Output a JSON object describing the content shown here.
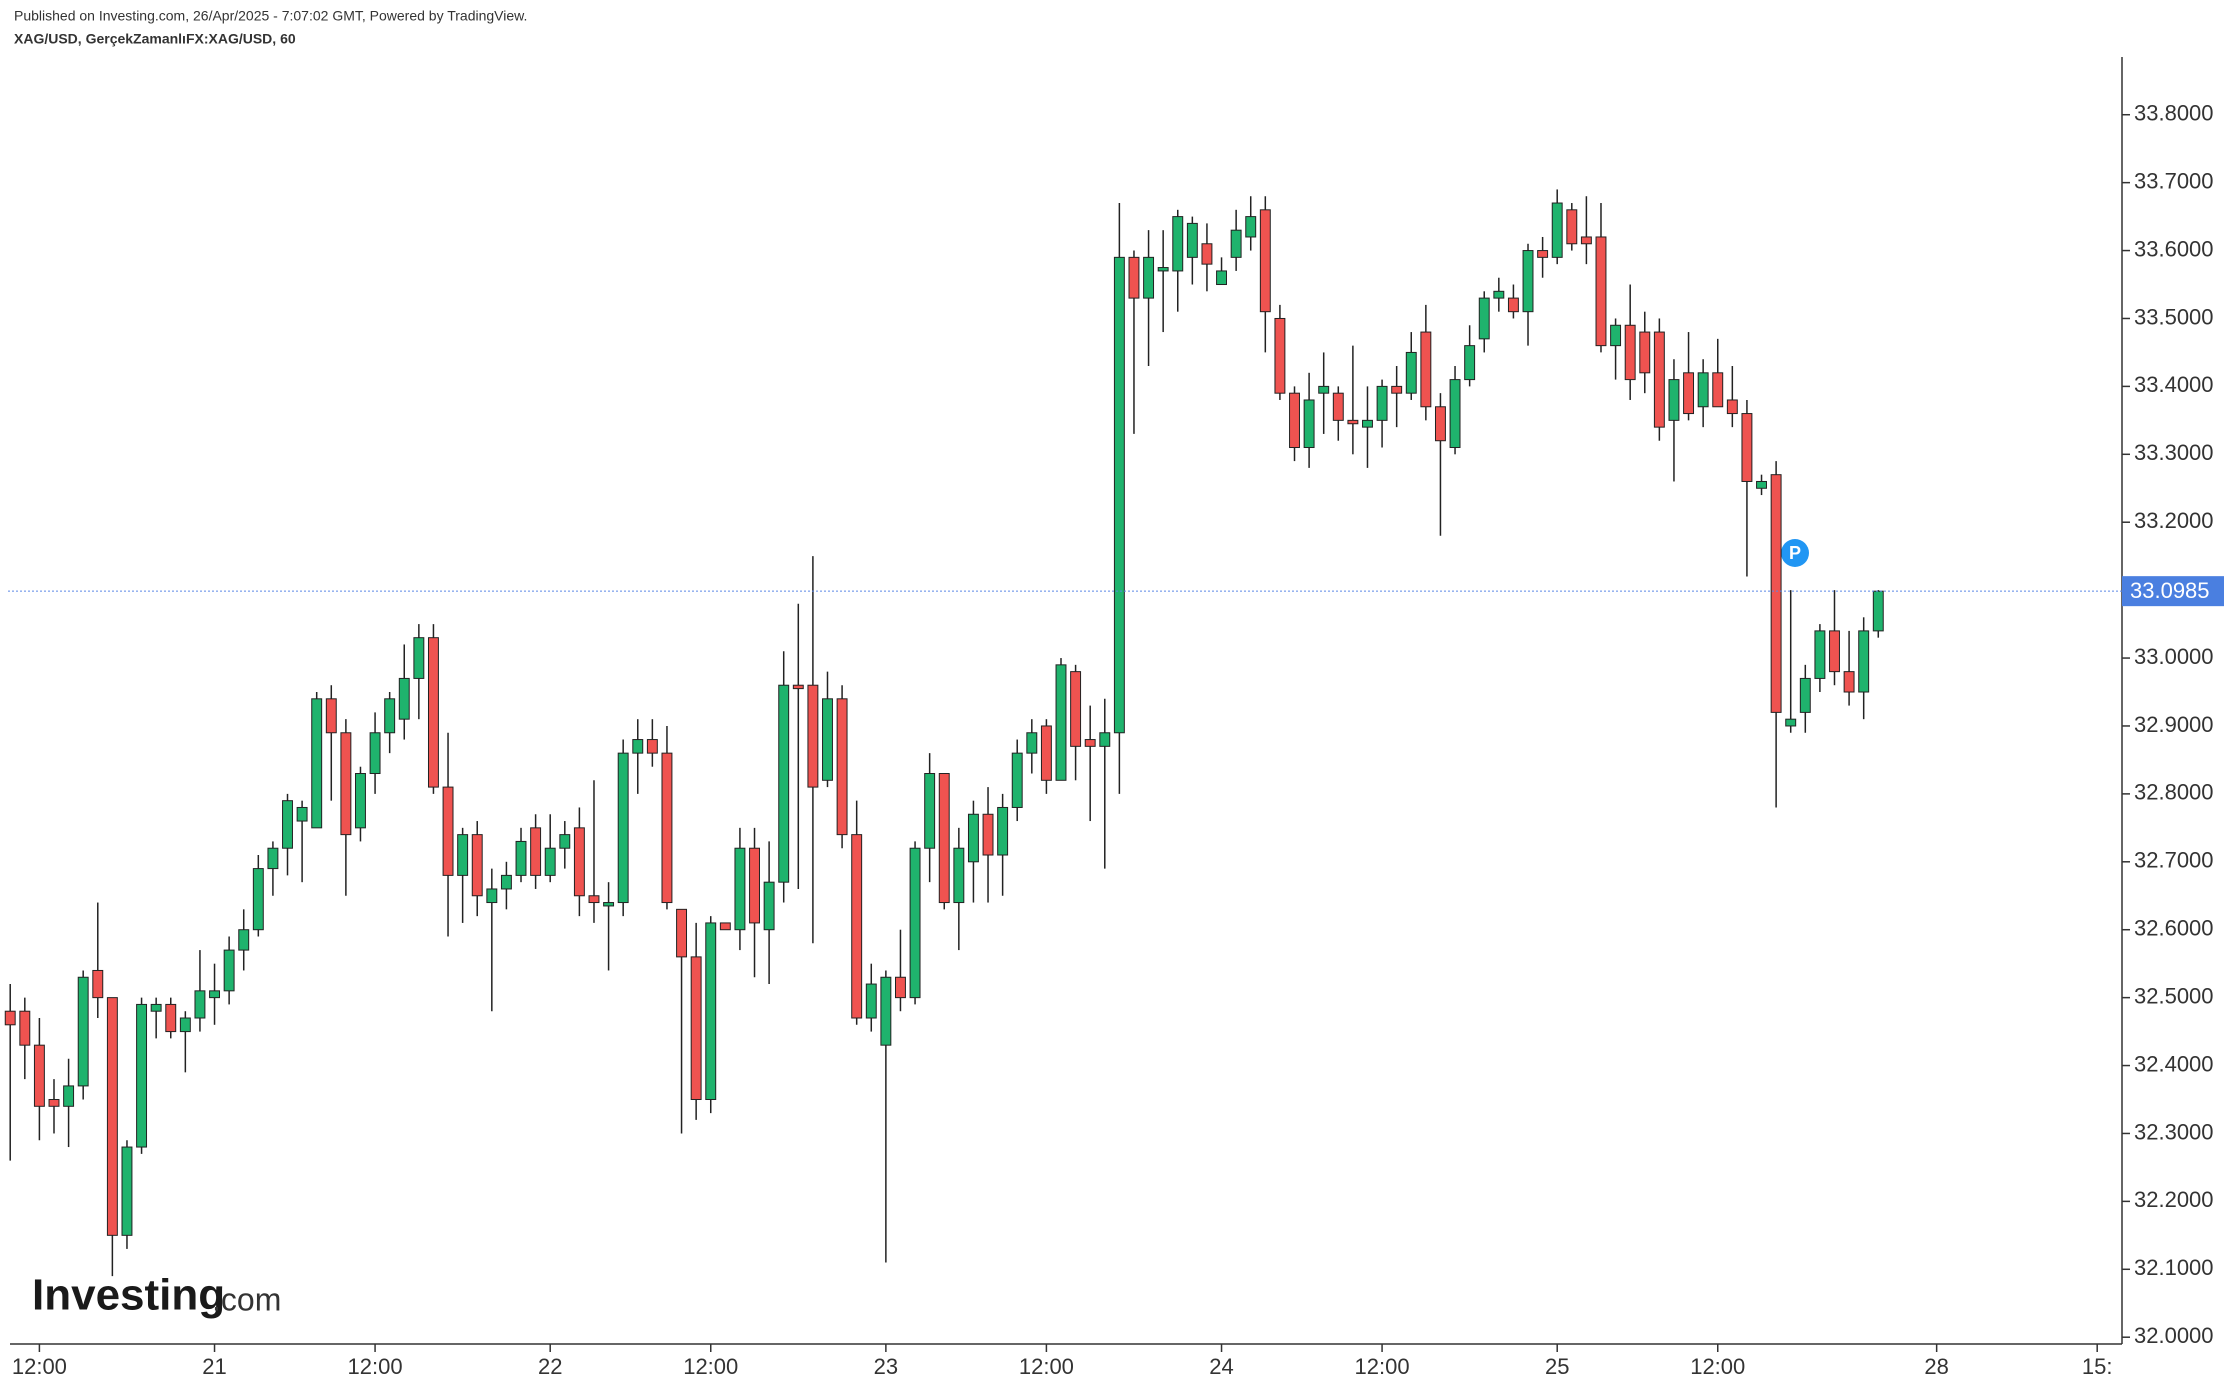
{
  "header": {
    "published": "Published on Investing.com, 26/Apr/2025 - 7:07:02 GMT, Powered by TradingView.",
    "symbol": "XAG/USD, GerçekZamanlıFX:XAG/USD, 60"
  },
  "logo": {
    "brand": "Investing",
    "suffix": ".com"
  },
  "marker": "P",
  "chart_data": {
    "type": "candlestick",
    "up_color": "#1fb36d",
    "down_color": "#ef5350",
    "outline_color": "#222222",
    "open": [
      32.48,
      32.48,
      32.43,
      32.35,
      32.34,
      32.37,
      32.54,
      32.5,
      32.15,
      32.28,
      32.48,
      32.49,
      32.45,
      32.47,
      32.5,
      32.51,
      32.57,
      32.6,
      32.69,
      32.72,
      32.76,
      32.75,
      32.94,
      32.89,
      32.75,
      32.83,
      32.89,
      32.91,
      32.97,
      33.03,
      32.81,
      32.68,
      32.74,
      32.64,
      32.66,
      32.68,
      32.75,
      32.68,
      32.72,
      32.75,
      32.65,
      32.635,
      32.64,
      32.86,
      32.88,
      32.86,
      32.63,
      32.56,
      32.35,
      32.61,
      32.6,
      32.72,
      32.6,
      32.67,
      32.96,
      32.96,
      32.82,
      32.94,
      32.74,
      32.47,
      32.43,
      32.53,
      32.5,
      32.72,
      32.83,
      32.64,
      32.7,
      32.77,
      32.71,
      32.78,
      32.86,
      32.9,
      32.82,
      32.98,
      32.88,
      32.87,
      32.89,
      33.59,
      33.53,
      33.57,
      33.57,
      33.59,
      33.61,
      33.55,
      33.59,
      33.62,
      33.66,
      33.5,
      33.39,
      33.31,
      33.39,
      33.39,
      33.35,
      33.34,
      33.35,
      33.4,
      33.39,
      33.48,
      33.37,
      33.31,
      33.41,
      33.47,
      33.53,
      33.53,
      33.51,
      33.6,
      33.59,
      33.66,
      33.62,
      33.62,
      33.46,
      33.49,
      33.48,
      33.48,
      33.35,
      33.42,
      33.37,
      33.42,
      33.38,
      33.36,
      33.25,
      33.27,
      32.9,
      32.92,
      32.97,
      33.04,
      32.98,
      32.95,
      33.04
    ],
    "high": [
      32.52,
      32.5,
      32.47,
      32.38,
      32.41,
      32.54,
      32.64,
      32.5,
      32.29,
      32.5,
      32.5,
      32.5,
      32.48,
      32.57,
      32.55,
      32.59,
      32.63,
      32.71,
      32.73,
      32.8,
      32.79,
      32.95,
      32.96,
      32.91,
      32.84,
      32.92,
      32.95,
      33.02,
      33.05,
      33.05,
      32.89,
      32.75,
      32.76,
      32.69,
      32.7,
      32.75,
      32.77,
      32.77,
      32.76,
      32.78,
      32.82,
      32.67,
      32.88,
      32.91,
      32.91,
      32.9,
      32.63,
      32.61,
      32.62,
      32.61,
      32.75,
      32.75,
      32.73,
      33.01,
      33.08,
      33.15,
      32.98,
      32.96,
      32.79,
      32.55,
      32.54,
      32.6,
      32.73,
      32.86,
      32.83,
      32.75,
      32.79,
      32.81,
      32.8,
      32.88,
      32.91,
      32.91,
      33.0,
      32.99,
      32.93,
      32.94,
      33.67,
      33.6,
      33.63,
      33.63,
      33.66,
      33.65,
      33.64,
      33.59,
      33.66,
      33.68,
      33.68,
      33.52,
      33.4,
      33.42,
      33.45,
      33.4,
      33.46,
      33.4,
      33.41,
      33.43,
      33.48,
      33.52,
      33.39,
      33.43,
      33.49,
      33.54,
      33.56,
      33.55,
      33.61,
      33.62,
      33.69,
      33.67,
      33.68,
      33.67,
      33.5,
      33.55,
      33.51,
      33.5,
      33.44,
      33.48,
      33.44,
      33.47,
      33.43,
      33.38,
      33.27,
      33.29,
      33.1,
      32.99,
      33.05,
      33.1,
      33.04,
      33.06,
      33.1
    ],
    "low": [
      32.26,
      32.38,
      32.29,
      32.3,
      32.28,
      32.35,
      32.47,
      32.09,
      32.13,
      32.27,
      32.44,
      32.44,
      32.39,
      32.45,
      32.46,
      32.49,
      32.54,
      32.59,
      32.65,
      32.68,
      32.67,
      32.75,
      32.79,
      32.65,
      32.73,
      32.8,
      32.86,
      32.88,
      32.91,
      32.8,
      32.59,
      32.61,
      32.62,
      32.48,
      32.63,
      32.67,
      32.66,
      32.67,
      32.69,
      32.62,
      32.61,
      32.54,
      32.62,
      32.8,
      32.84,
      32.63,
      32.3,
      32.32,
      32.33,
      32.6,
      32.57,
      32.53,
      32.52,
      32.64,
      32.66,
      32.58,
      32.81,
      32.72,
      32.46,
      32.45,
      32.11,
      32.48,
      32.49,
      32.67,
      32.63,
      32.57,
      32.64,
      32.64,
      32.65,
      32.76,
      32.83,
      32.8,
      32.82,
      32.82,
      32.76,
      32.69,
      32.8,
      33.33,
      33.43,
      33.48,
      33.51,
      33.55,
      33.54,
      33.55,
      33.57,
      33.6,
      33.45,
      33.38,
      33.29,
      33.28,
      33.33,
      33.32,
      33.3,
      33.28,
      33.31,
      33.34,
      33.38,
      33.35,
      33.18,
      33.3,
      33.4,
      33.45,
      33.51,
      33.5,
      33.46,
      33.56,
      33.58,
      33.6,
      33.58,
      33.45,
      33.41,
      33.38,
      33.39,
      33.32,
      33.26,
      33.35,
      33.34,
      33.37,
      33.34,
      33.12,
      33.24,
      32.78,
      32.89,
      32.89,
      32.95,
      32.96,
      32.93,
      32.91,
      33.03
    ],
    "close": [
      32.46,
      32.43,
      32.34,
      32.34,
      32.37,
      32.53,
      32.5,
      32.15,
      32.28,
      32.49,
      32.49,
      32.45,
      32.47,
      32.51,
      32.51,
      32.57,
      32.6,
      32.69,
      32.72,
      32.79,
      32.78,
      32.94,
      32.89,
      32.74,
      32.83,
      32.89,
      32.94,
      32.97,
      33.03,
      32.81,
      32.68,
      32.74,
      32.65,
      32.66,
      32.68,
      32.73,
      32.68,
      32.72,
      32.74,
      32.65,
      32.64,
      32.64,
      32.86,
      32.88,
      32.86,
      32.64,
      32.56,
      32.35,
      32.61,
      32.6,
      32.72,
      32.61,
      32.67,
      32.96,
      32.955,
      32.81,
      32.94,
      32.74,
      32.47,
      32.52,
      32.53,
      32.5,
      32.72,
      32.83,
      32.64,
      32.72,
      32.77,
      32.71,
      32.78,
      32.86,
      32.89,
      32.82,
      32.99,
      32.87,
      32.87,
      32.89,
      33.59,
      33.53,
      33.59,
      33.575,
      33.65,
      33.64,
      33.58,
      33.57,
      33.63,
      33.65,
      33.51,
      33.39,
      33.31,
      33.38,
      33.4,
      33.35,
      33.345,
      33.35,
      33.4,
      33.39,
      33.45,
      33.37,
      33.32,
      33.41,
      33.46,
      33.53,
      33.54,
      33.51,
      33.6,
      33.59,
      33.67,
      33.61,
      33.61,
      33.46,
      33.49,
      33.41,
      33.42,
      33.34,
      33.41,
      33.36,
      33.42,
      33.37,
      33.36,
      33.26,
      33.26,
      32.92,
      32.91,
      32.97,
      33.04,
      32.98,
      32.95,
      33.04,
      33.0985
    ],
    "last_price": 33.0985,
    "xlim": [
      -0.7,
      144.7
    ],
    "xticks": [
      {
        "value": 2,
        "label": "12:00"
      },
      {
        "value": 14,
        "label": "21"
      },
      {
        "value": 25,
        "label": "12:00"
      },
      {
        "value": 37,
        "label": "22"
      },
      {
        "value": 48,
        "label": "12:00"
      },
      {
        "value": 60,
        "label": "23"
      },
      {
        "value": 71,
        "label": "12:00"
      },
      {
        "value": 83,
        "label": "24"
      },
      {
        "value": 94,
        "label": "12:00"
      },
      {
        "value": 106,
        "label": "25"
      },
      {
        "value": 117,
        "label": "12:00"
      },
      {
        "value": 132,
        "label": "28"
      },
      {
        "value": 143,
        "label": "15:"
      }
    ],
    "ylim": [
      31.99,
      33.885
    ],
    "yticks": [
      {
        "value": 32.0,
        "label": "32.0000"
      },
      {
        "value": 32.1,
        "label": "32.1000"
      },
      {
        "value": 32.2,
        "label": "32.2000"
      },
      {
        "value": 32.3,
        "label": "32.3000"
      },
      {
        "value": 32.4,
        "label": "32.4000"
      },
      {
        "value": 32.5,
        "label": "32.5000"
      },
      {
        "value": 32.6,
        "label": "32.6000"
      },
      {
        "value": 32.7,
        "label": "32.7000"
      },
      {
        "value": 32.8,
        "label": "32.8000"
      },
      {
        "value": 32.9,
        "label": "32.9000"
      },
      {
        "value": 33.0,
        "label": "33.0000"
      },
      {
        "value": 33.1,
        "label": "33.1000"
      },
      {
        "value": 33.2,
        "label": "33.2000"
      },
      {
        "value": 33.3,
        "label": "33.3000"
      },
      {
        "value": 33.4,
        "label": "33.4000"
      },
      {
        "value": 33.5,
        "label": "33.5000"
      },
      {
        "value": 33.6,
        "label": "33.6000"
      },
      {
        "value": 33.7,
        "label": "33.7000"
      },
      {
        "value": 33.8,
        "label": "33.8000"
      }
    ]
  }
}
